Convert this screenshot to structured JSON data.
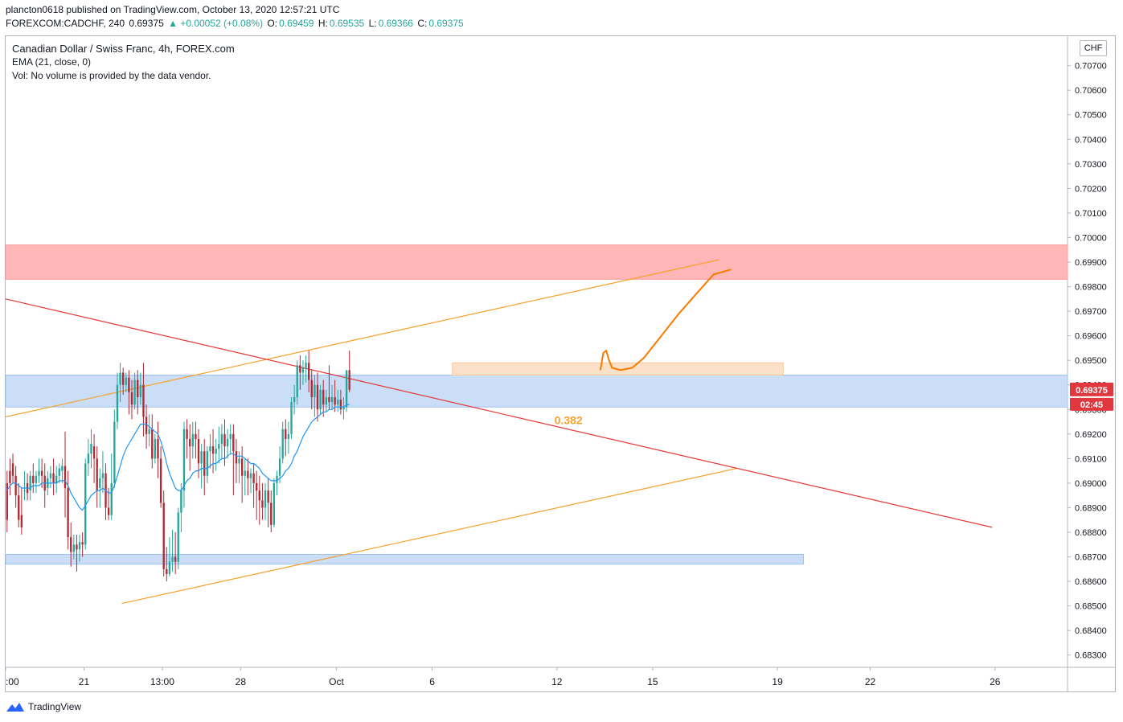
{
  "header": {
    "line1": "plancton0618 published on TradingView.com, October 13, 2020 12:57:21 UTC",
    "symbol": "FOREXCOM:CADCHF, 240",
    "last": "0.69375",
    "change": "▲ +0.00052 (+0.08%)",
    "o_label": "O:",
    "o": "0.69459",
    "h_label": "H:",
    "h": "0.69535",
    "l_label": "L:",
    "l": "0.69366",
    "c_label": "C:",
    "c": "0.69375"
  },
  "legend": {
    "title": "Canadian Dollar / Swiss Franc, 4h, FOREX.com",
    "ema": "EMA (21, close, 0)",
    "vol": "Vol: No volume is provided by the data vendor."
  },
  "axis": {
    "currency": "CHF",
    "price_tag": "0.69375",
    "timer_tag": "02:45"
  },
  "footer": {
    "brand": "TradingView"
  },
  "colors": {
    "up": "#26a69a",
    "down": "#b22833",
    "ema": "#2196f3",
    "orange": "#f7a02b",
    "red_line": "#e53935",
    "resistance": "#ff9e9e",
    "support": "#9fc2f2",
    "tag_red": "#e0383e"
  },
  "chart_data": {
    "type": "candlestick",
    "title": "Canadian Dollar / Swiss Franc, 4h, FOREX.com",
    "ylim": [
      0.6825,
      0.7082
    ],
    "y_ticks": [
      0.683,
      0.684,
      0.685,
      0.686,
      0.687,
      0.688,
      0.689,
      0.69,
      0.691,
      0.692,
      0.693,
      0.694,
      0.695,
      0.696,
      0.697,
      0.698,
      0.699,
      0.7,
      0.701,
      0.702,
      0.703,
      0.704,
      0.705,
      0.706,
      0.707
    ],
    "y_tick_labels": [
      "0.68300",
      "0.68400",
      "0.68500",
      "0.68600",
      "0.68700",
      "0.68800",
      "0.68900",
      "0.69000",
      "0.69100",
      "0.69200",
      "0.69300",
      "0.69400",
      "0.69500",
      "0.69600",
      "0.69700",
      "0.69800",
      "0.69900",
      "0.70000",
      "0.70100",
      "0.70200",
      "0.70300",
      "0.70400",
      "0.70500",
      "0.70600",
      "0.70700"
    ],
    "x_range": [
      0,
      366
    ],
    "x_ticks": [
      {
        "x": 0,
        "label": ":00"
      },
      {
        "x": 27,
        "label": "21"
      },
      {
        "x": 54,
        "label": "13:00"
      },
      {
        "x": 81,
        "label": "28"
      },
      {
        "x": 114,
        "label": "Oct"
      },
      {
        "x": 147,
        "label": "6"
      },
      {
        "x": 190,
        "label": "12"
      },
      {
        "x": 223,
        "label": "15"
      },
      {
        "x": 266,
        "label": "19"
      },
      {
        "x": 298,
        "label": "22"
      },
      {
        "x": 341,
        "label": "26"
      }
    ],
    "candles": [
      [
        0.69,
        0.6905,
        0.6885,
        0.688
      ],
      [
        0.6905,
        0.691,
        0.69,
        0.6895
      ],
      [
        0.6908,
        0.6912,
        0.6903,
        0.69
      ],
      [
        0.6903,
        0.6907,
        0.6895,
        0.689
      ],
      [
        0.6895,
        0.69,
        0.6885,
        0.6882
      ],
      [
        0.6887,
        0.6898,
        0.6882,
        0.6879
      ],
      [
        0.6897,
        0.6905,
        0.6897,
        0.6893
      ],
      [
        0.69,
        0.6904,
        0.6896,
        0.6893
      ],
      [
        0.6897,
        0.6905,
        0.6903,
        0.6893
      ],
      [
        0.6903,
        0.6908,
        0.69,
        0.6896
      ],
      [
        0.69,
        0.6905,
        0.6903,
        0.6896
      ],
      [
        0.6903,
        0.691,
        0.6905,
        0.69
      ],
      [
        0.6905,
        0.691,
        0.6903,
        0.6898
      ],
      [
        0.6903,
        0.6908,
        0.6897,
        0.689
      ],
      [
        0.6898,
        0.6905,
        0.6902,
        0.6895
      ],
      [
        0.6902,
        0.6907,
        0.6904,
        0.6898
      ],
      [
        0.6904,
        0.691,
        0.69,
        0.6895
      ],
      [
        0.69,
        0.6907,
        0.6903,
        0.6896
      ],
      [
        0.6903,
        0.6908,
        0.6906,
        0.69
      ],
      [
        0.6905,
        0.691,
        0.6907,
        0.69
      ],
      [
        0.6907,
        0.6921,
        0.6898,
        0.6886
      ],
      [
        0.6898,
        0.6905,
        0.6878,
        0.6873
      ],
      [
        0.6878,
        0.6884,
        0.6872,
        0.6866
      ],
      [
        0.6872,
        0.6879,
        0.6875,
        0.6869
      ],
      [
        0.6875,
        0.6879,
        0.6873,
        0.6864
      ],
      [
        0.6873,
        0.6879,
        0.6876,
        0.6868
      ],
      [
        0.6876,
        0.688,
        0.6875,
        0.687
      ],
      [
        0.6875,
        0.691,
        0.6908,
        0.6873
      ],
      [
        0.6908,
        0.6918,
        0.6912,
        0.6903
      ],
      [
        0.6912,
        0.6922,
        0.6916,
        0.6906
      ],
      [
        0.6915,
        0.692,
        0.691,
        0.69
      ],
      [
        0.691,
        0.6915,
        0.6897,
        0.689
      ],
      [
        0.6898,
        0.6906,
        0.6902,
        0.689
      ],
      [
        0.6902,
        0.6913,
        0.6904,
        0.6896
      ],
      [
        0.6904,
        0.6908,
        0.689,
        0.6885
      ],
      [
        0.689,
        0.6898,
        0.6887,
        0.6885
      ],
      [
        0.6887,
        0.6912,
        0.69,
        0.6885
      ],
      [
        0.69,
        0.693,
        0.6925,
        0.6898
      ],
      [
        0.6925,
        0.6945,
        0.694,
        0.6922
      ],
      [
        0.694,
        0.6949,
        0.6945,
        0.6933
      ],
      [
        0.6945,
        0.6947,
        0.694,
        0.6936
      ],
      [
        0.694,
        0.6945,
        0.6943,
        0.6937
      ],
      [
        0.6943,
        0.6946,
        0.6937,
        0.6928
      ],
      [
        0.6937,
        0.6942,
        0.6932,
        0.6926
      ],
      [
        0.6932,
        0.6945,
        0.6942,
        0.693
      ],
      [
        0.6942,
        0.6946,
        0.6935,
        0.6928
      ],
      [
        0.6935,
        0.6945,
        0.694,
        0.6932
      ],
      [
        0.694,
        0.6949,
        0.6927,
        0.6919
      ],
      [
        0.6927,
        0.6932,
        0.692,
        0.6914
      ],
      [
        0.692,
        0.6928,
        0.6922,
        0.6915
      ],
      [
        0.6922,
        0.6928,
        0.691,
        0.6906
      ],
      [
        0.691,
        0.692,
        0.6918,
        0.6908
      ],
      [
        0.6918,
        0.6925,
        0.691,
        0.6902
      ],
      [
        0.691,
        0.6915,
        0.6892,
        0.689
      ],
      [
        0.6892,
        0.6897,
        0.6865,
        0.6862
      ],
      [
        0.6865,
        0.6874,
        0.6863,
        0.686
      ],
      [
        0.6863,
        0.6878,
        0.6868,
        0.6862
      ],
      [
        0.6868,
        0.6881,
        0.687,
        0.6864
      ],
      [
        0.687,
        0.688,
        0.6868,
        0.6863
      ],
      [
        0.6868,
        0.689,
        0.6888,
        0.6865
      ],
      [
        0.6888,
        0.69,
        0.6897,
        0.688
      ],
      [
        0.6897,
        0.6925,
        0.6922,
        0.689
      ],
      [
        0.6922,
        0.6926,
        0.6918,
        0.691
      ],
      [
        0.6918,
        0.6924,
        0.6915,
        0.6905
      ],
      [
        0.6915,
        0.6925,
        0.692,
        0.691
      ],
      [
        0.692,
        0.6925,
        0.6918,
        0.691
      ],
      [
        0.6918,
        0.6922,
        0.6908,
        0.6902
      ],
      [
        0.6908,
        0.6916,
        0.6913,
        0.6898
      ],
      [
        0.6913,
        0.6918,
        0.6903,
        0.6895
      ],
      [
        0.6903,
        0.6915,
        0.6913,
        0.69
      ],
      [
        0.6913,
        0.692,
        0.6915,
        0.6906
      ],
      [
        0.6915,
        0.6922,
        0.6912,
        0.6904
      ],
      [
        0.6912,
        0.6918,
        0.6914,
        0.6905
      ],
      [
        0.6914,
        0.6923,
        0.6916,
        0.6908
      ],
      [
        0.6916,
        0.6924,
        0.692,
        0.691
      ],
      [
        0.692,
        0.6926,
        0.6915,
        0.6907
      ],
      [
        0.6915,
        0.6922,
        0.6918,
        0.691
      ],
      [
        0.6918,
        0.6924,
        0.692,
        0.6912
      ],
      [
        0.692,
        0.6924,
        0.6913,
        0.6895
      ],
      [
        0.6913,
        0.6918,
        0.6908,
        0.69
      ],
      [
        0.6908,
        0.6913,
        0.691,
        0.69
      ],
      [
        0.691,
        0.6915,
        0.6903,
        0.6892
      ],
      [
        0.6903,
        0.691,
        0.6905,
        0.6895
      ],
      [
        0.6905,
        0.691,
        0.6902,
        0.6895
      ],
      [
        0.6902,
        0.6906,
        0.6904,
        0.6896
      ],
      [
        0.6904,
        0.6908,
        0.69,
        0.689
      ],
      [
        0.69,
        0.6905,
        0.6897,
        0.6885
      ],
      [
        0.6897,
        0.6903,
        0.6893,
        0.6883
      ],
      [
        0.6893,
        0.69,
        0.689,
        0.6885
      ],
      [
        0.689,
        0.69,
        0.6897,
        0.6885
      ],
      [
        0.6897,
        0.6902,
        0.6892,
        0.6882
      ],
      [
        0.6892,
        0.6897,
        0.6883,
        0.688
      ],
      [
        0.6883,
        0.6902,
        0.69,
        0.6882
      ],
      [
        0.69,
        0.6905,
        0.6903,
        0.6895
      ],
      [
        0.6903,
        0.6915,
        0.691,
        0.69
      ],
      [
        0.691,
        0.6925,
        0.6922,
        0.6908
      ],
      [
        0.6922,
        0.6926,
        0.6918,
        0.6911
      ],
      [
        0.6918,
        0.6925,
        0.692,
        0.6912
      ],
      [
        0.692,
        0.6935,
        0.6933,
        0.6918
      ],
      [
        0.6933,
        0.694,
        0.6935,
        0.6928
      ],
      [
        0.6935,
        0.695,
        0.6948,
        0.6932
      ],
      [
        0.6948,
        0.6952,
        0.6945,
        0.6938
      ],
      [
        0.6945,
        0.695,
        0.6947,
        0.694
      ],
      [
        0.6947,
        0.6952,
        0.6949,
        0.6941
      ],
      [
        0.6949,
        0.6954,
        0.6942,
        0.6937
      ],
      [
        0.6942,
        0.6946,
        0.6935,
        0.693
      ],
      [
        0.6935,
        0.6944,
        0.694,
        0.6927
      ],
      [
        0.694,
        0.6945,
        0.693,
        0.6925
      ],
      [
        0.693,
        0.694,
        0.6938,
        0.6928
      ],
      [
        0.6938,
        0.6942,
        0.6932,
        0.6927
      ],
      [
        0.6932,
        0.6938,
        0.6935,
        0.6929
      ],
      [
        0.6935,
        0.6948,
        0.6933,
        0.693
      ],
      [
        0.6933,
        0.694,
        0.6935,
        0.693
      ],
      [
        0.6935,
        0.6942,
        0.6932,
        0.6929
      ],
      [
        0.6932,
        0.6938,
        0.6934,
        0.6929
      ],
      [
        0.6934,
        0.6938,
        0.693,
        0.6928
      ],
      [
        0.693,
        0.6935,
        0.6931,
        0.6926
      ],
      [
        0.6931,
        0.6945,
        0.6946,
        0.6929
      ],
      [
        0.6946,
        0.6954,
        0.6938,
        0.6937
      ]
    ],
    "ema_21": [
      0.6897,
      0.6899,
      0.69,
      0.69,
      0.6899,
      0.6898,
      0.6898,
      0.6898,
      0.6898,
      0.6899,
      0.6899,
      0.6899,
      0.69,
      0.69,
      0.69,
      0.69,
      0.69,
      0.69,
      0.6901,
      0.6901,
      0.6901,
      0.6899,
      0.6896,
      0.6894,
      0.6892,
      0.689,
      0.6889,
      0.6891,
      0.6893,
      0.6895,
      0.6896,
      0.6897,
      0.6897,
      0.6898,
      0.6897,
      0.6896,
      0.6896,
      0.6899,
      0.6903,
      0.6907,
      0.6911,
      0.6914,
      0.6916,
      0.6918,
      0.692,
      0.6922,
      0.6924,
      0.6924,
      0.6924,
      0.6923,
      0.6922,
      0.6921,
      0.692,
      0.6917,
      0.6913,
      0.6908,
      0.6904,
      0.6901,
      0.6898,
      0.6897,
      0.6897,
      0.6899,
      0.6901,
      0.6902,
      0.6904,
      0.6905,
      0.6905,
      0.6906,
      0.6906,
      0.6906,
      0.6907,
      0.6908,
      0.6908,
      0.6909,
      0.691,
      0.691,
      0.6911,
      0.6912,
      0.6912,
      0.6911,
      0.6911,
      0.6911,
      0.691,
      0.6909,
      0.6908,
      0.6908,
      0.6907,
      0.6906,
      0.6904,
      0.6903,
      0.6902,
      0.6901,
      0.6901,
      0.6901,
      0.6902,
      0.6903,
      0.6905,
      0.6906,
      0.6908,
      0.6911,
      0.6913,
      0.6916,
      0.6919,
      0.6921,
      0.6923,
      0.6925,
      0.6926,
      0.6927,
      0.6928,
      0.6929,
      0.6929,
      0.693,
      0.693,
      0.6931,
      0.6931,
      0.6931,
      0.6931,
      0.6932,
      0.6932
    ],
    "zones": [
      {
        "name": "resistance",
        "y1": 0.6997,
        "y2": 0.6983,
        "x1": 0,
        "x2": 366
      },
      {
        "name": "support-upper",
        "y1": 0.6944,
        "y2": 0.6931,
        "x1": 0,
        "x2": 366
      },
      {
        "name": "support-lower",
        "y1": 0.6871,
        "y2": 0.6867,
        "x1": 0,
        "x2": 275
      },
      {
        "name": "target-box",
        "y1": 0.6949,
        "y2": 0.6944,
        "x1": 154,
        "x2": 268
      }
    ],
    "lines": [
      {
        "name": "orange-upper-trend",
        "x1": 0,
        "y1": 0.6927,
        "x2": 246,
        "y2": 0.6991
      },
      {
        "name": "orange-lower-trend",
        "x1": 40,
        "y1": 0.6851,
        "x2": 252,
        "y2": 0.6906
      },
      {
        "name": "red-descending-trend",
        "x1": 0,
        "y1": 0.6975,
        "x2": 340,
        "y2": 0.6882
      }
    ],
    "projection": [
      [
        205,
        0.6946
      ],
      [
        206,
        0.6953
      ],
      [
        207,
        0.6954
      ],
      [
        208,
        0.695
      ],
      [
        209,
        0.6947
      ],
      [
        212,
        0.6946
      ],
      [
        216,
        0.6947
      ],
      [
        220,
        0.6951
      ],
      [
        226,
        0.696
      ],
      [
        232,
        0.6969
      ],
      [
        238,
        0.6977
      ],
      [
        244,
        0.6985
      ],
      [
        250,
        0.6987
      ]
    ],
    "annotations": [
      {
        "text": "0.382",
        "x": 194,
        "y": 0.6924
      }
    ]
  }
}
